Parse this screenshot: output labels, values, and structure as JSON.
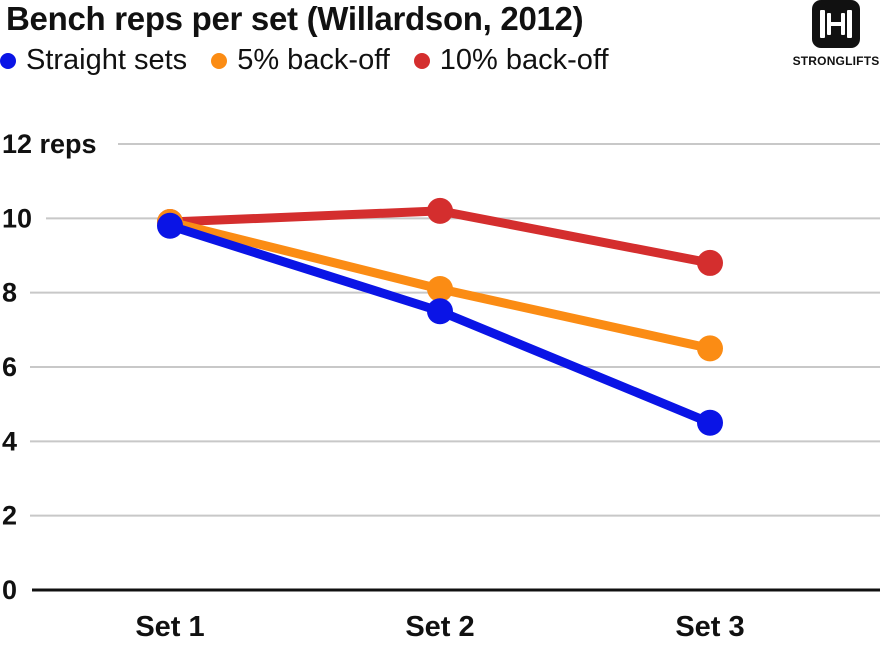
{
  "header": {
    "title": "Bench reps per set (Willardson, 2012)",
    "logo_text": "STRONGLIFTS",
    "logo_icon": "barbell-icon"
  },
  "chart_data": {
    "type": "line",
    "title": "Bench reps per set (Willardson, 2012)",
    "categories": [
      "Set 1",
      "Set 2",
      "Set 3"
    ],
    "ylim": [
      0,
      12
    ],
    "yticks": [
      {
        "value": 0,
        "label": "0"
      },
      {
        "value": 2,
        "label": "2"
      },
      {
        "value": 4,
        "label": "4"
      },
      {
        "value": 6,
        "label": "6"
      },
      {
        "value": 8,
        "label": "8"
      },
      {
        "value": 10,
        "label": "10"
      },
      {
        "value": 12,
        "label": "12 reps"
      }
    ],
    "grid": true,
    "legend_position": "top-left",
    "series": [
      {
        "name": "Straight sets",
        "color": "#0a14e6",
        "values": [
          9.8,
          7.5,
          4.5
        ]
      },
      {
        "name": "5% back-off",
        "color": "#fb8c14",
        "values": [
          9.9,
          8.1,
          6.5
        ]
      },
      {
        "name": "10% back-off",
        "color": "#d42e2e",
        "values": [
          9.9,
          10.2,
          8.8
        ]
      }
    ]
  }
}
